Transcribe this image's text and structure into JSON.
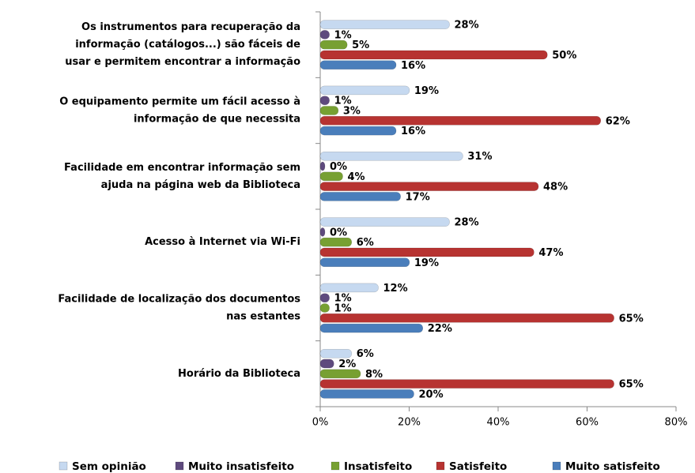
{
  "chart_data": {
    "type": "hbar",
    "categories": [
      [
        "Os instrumentos  para recuperação da",
        "informação (catálogos...) são fáceis de",
        "usar e permitem encontrar a informação"
      ],
      [
        "O equipamento permite um fácil acesso à",
        "informação de que necessita"
      ],
      [
        "Facilidade em encontrar informação sem",
        "ajuda na página web da Biblioteca"
      ],
      [
        "Acesso à Internet via Wi-Fi"
      ],
      [
        "Facilidade de localização dos documentos",
        "nas estantes"
      ],
      [
        "Horário da Biblioteca"
      ]
    ],
    "series": [
      {
        "name": "Sem opinião",
        "color": "#c6d9f0",
        "values": [
          28,
          19,
          31,
          28,
          12,
          6
        ],
        "value_labels": [
          "28%",
          "19%",
          "31%",
          "28%",
          "12%",
          "6%"
        ]
      },
      {
        "name": "Muito insatisfeito",
        "color": "#5e4a7e",
        "values": [
          1,
          1,
          0,
          0,
          1,
          2
        ],
        "value_labels": [
          "1%",
          "1%",
          "0%",
          "0%",
          "1%",
          "2%"
        ]
      },
      {
        "name": "Insatisfeito",
        "color": "#77a032",
        "values": [
          5,
          3,
          4,
          6,
          1,
          8
        ],
        "value_labels": [
          "5%",
          "3%",
          "4%",
          "6%",
          "1%",
          "8%"
        ]
      },
      {
        "name": "Satisfeito",
        "color": "#b73331",
        "values": [
          50,
          62,
          48,
          47,
          65,
          65
        ],
        "value_labels": [
          "50%",
          "62%",
          "48%",
          "47%",
          "65%",
          "65%"
        ]
      },
      {
        "name": "Muito satisfeito",
        "color": "#4a7ebb",
        "values": [
          16,
          16,
          17,
          19,
          22,
          20
        ],
        "value_labels": [
          "16%",
          "16%",
          "17%",
          "19%",
          "22%",
          "20%"
        ]
      }
    ],
    "xlim": [
      0,
      80
    ],
    "xticks": [
      {
        "value": 0,
        "label": "0%"
      },
      {
        "value": 20,
        "label": "20%"
      },
      {
        "value": 40,
        "label": "40%"
      },
      {
        "value": 60,
        "label": "60%"
      },
      {
        "value": 80,
        "label": "80%"
      }
    ],
    "legend": "bottom"
  }
}
